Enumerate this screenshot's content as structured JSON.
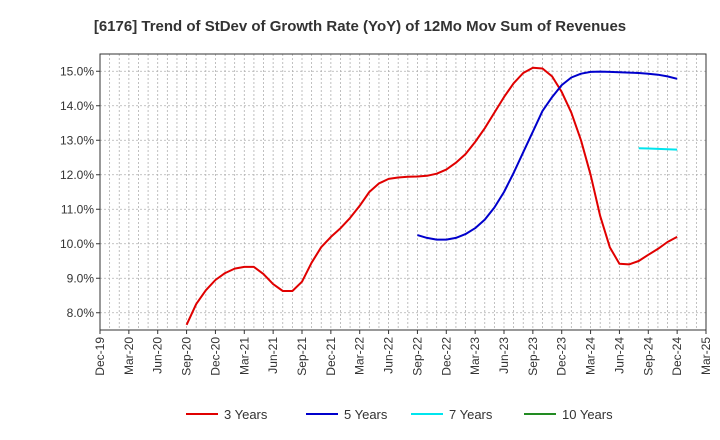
{
  "chart_data": {
    "type": "line",
    "title": "[6176]  Trend of StDev of Growth Rate (YoY) of 12Mo Mov Sum of Revenues",
    "xlabel": "",
    "ylabel": "",
    "ylim": [
      7.5,
      15.5
    ],
    "y_ticks": [
      8.0,
      9.0,
      10.0,
      11.0,
      12.0,
      13.0,
      14.0,
      15.0
    ],
    "y_tick_labels": [
      "8.0%",
      "9.0%",
      "10.0%",
      "11.0%",
      "12.0%",
      "13.0%",
      "14.0%",
      "15.0%"
    ],
    "x_ticks": [
      "Dec-19",
      "Mar-20",
      "Jun-20",
      "Sep-20",
      "Dec-20",
      "Mar-21",
      "Jun-21",
      "Sep-21",
      "Dec-21",
      "Mar-22",
      "Jun-22",
      "Sep-22",
      "Dec-22",
      "Mar-23",
      "Jun-23",
      "Sep-23",
      "Dec-23",
      "Mar-24",
      "Jun-24",
      "Sep-24",
      "Dec-24",
      "Mar-25"
    ],
    "x_range_months": [
      0,
      63
    ],
    "grid": true,
    "legend_position": "bottom",
    "series": [
      {
        "name": "3 Years",
        "color": "#e00000",
        "x": [
          9,
          10,
          11,
          12,
          13,
          14,
          15,
          16,
          17,
          18,
          19,
          20,
          21,
          22,
          23,
          24,
          25,
          26,
          27,
          28,
          29,
          30,
          31,
          32,
          33,
          34,
          35,
          36,
          37,
          38,
          39,
          40,
          41,
          42,
          43,
          44,
          45,
          46,
          47,
          48,
          49,
          50,
          51,
          52,
          53,
          54,
          55,
          56,
          57,
          58,
          59,
          60
        ],
        "values": [
          7.65,
          8.25,
          8.65,
          8.95,
          9.15,
          9.28,
          9.33,
          9.33,
          9.12,
          8.83,
          8.63,
          8.63,
          8.9,
          9.45,
          9.9,
          10.2,
          10.45,
          10.75,
          11.1,
          11.5,
          11.75,
          11.88,
          11.92,
          11.94,
          11.95,
          11.97,
          12.03,
          12.15,
          12.35,
          12.6,
          12.95,
          13.35,
          13.8,
          14.25,
          14.65,
          14.95,
          15.1,
          15.08,
          14.85,
          14.4,
          13.8,
          13.0,
          12.0,
          10.8,
          9.9,
          9.42,
          9.4,
          9.5,
          9.68,
          9.85,
          10.05,
          10.2
        ]
      },
      {
        "name": "5 Years",
        "color": "#0000cc",
        "x": [
          33,
          34,
          35,
          36,
          37,
          38,
          39,
          40,
          41,
          42,
          43,
          44,
          45,
          46,
          47,
          48,
          49,
          50,
          51,
          52,
          53,
          54,
          55,
          56,
          57,
          58,
          59,
          60
        ],
        "values": [
          10.25,
          10.17,
          10.12,
          10.12,
          10.17,
          10.28,
          10.45,
          10.7,
          11.05,
          11.5,
          12.05,
          12.65,
          13.25,
          13.85,
          14.25,
          14.6,
          14.82,
          14.93,
          14.98,
          14.99,
          14.98,
          14.97,
          14.96,
          14.95,
          14.93,
          14.9,
          14.85,
          14.78
        ]
      },
      {
        "name": "7 Years",
        "color": "#00e5ee",
        "x": [
          56,
          57,
          58,
          59,
          60
        ],
        "values": [
          12.77,
          12.76,
          12.75,
          12.74,
          12.73
        ]
      },
      {
        "name": "10 Years",
        "color": "#228b22",
        "x": [],
        "values": []
      }
    ]
  }
}
